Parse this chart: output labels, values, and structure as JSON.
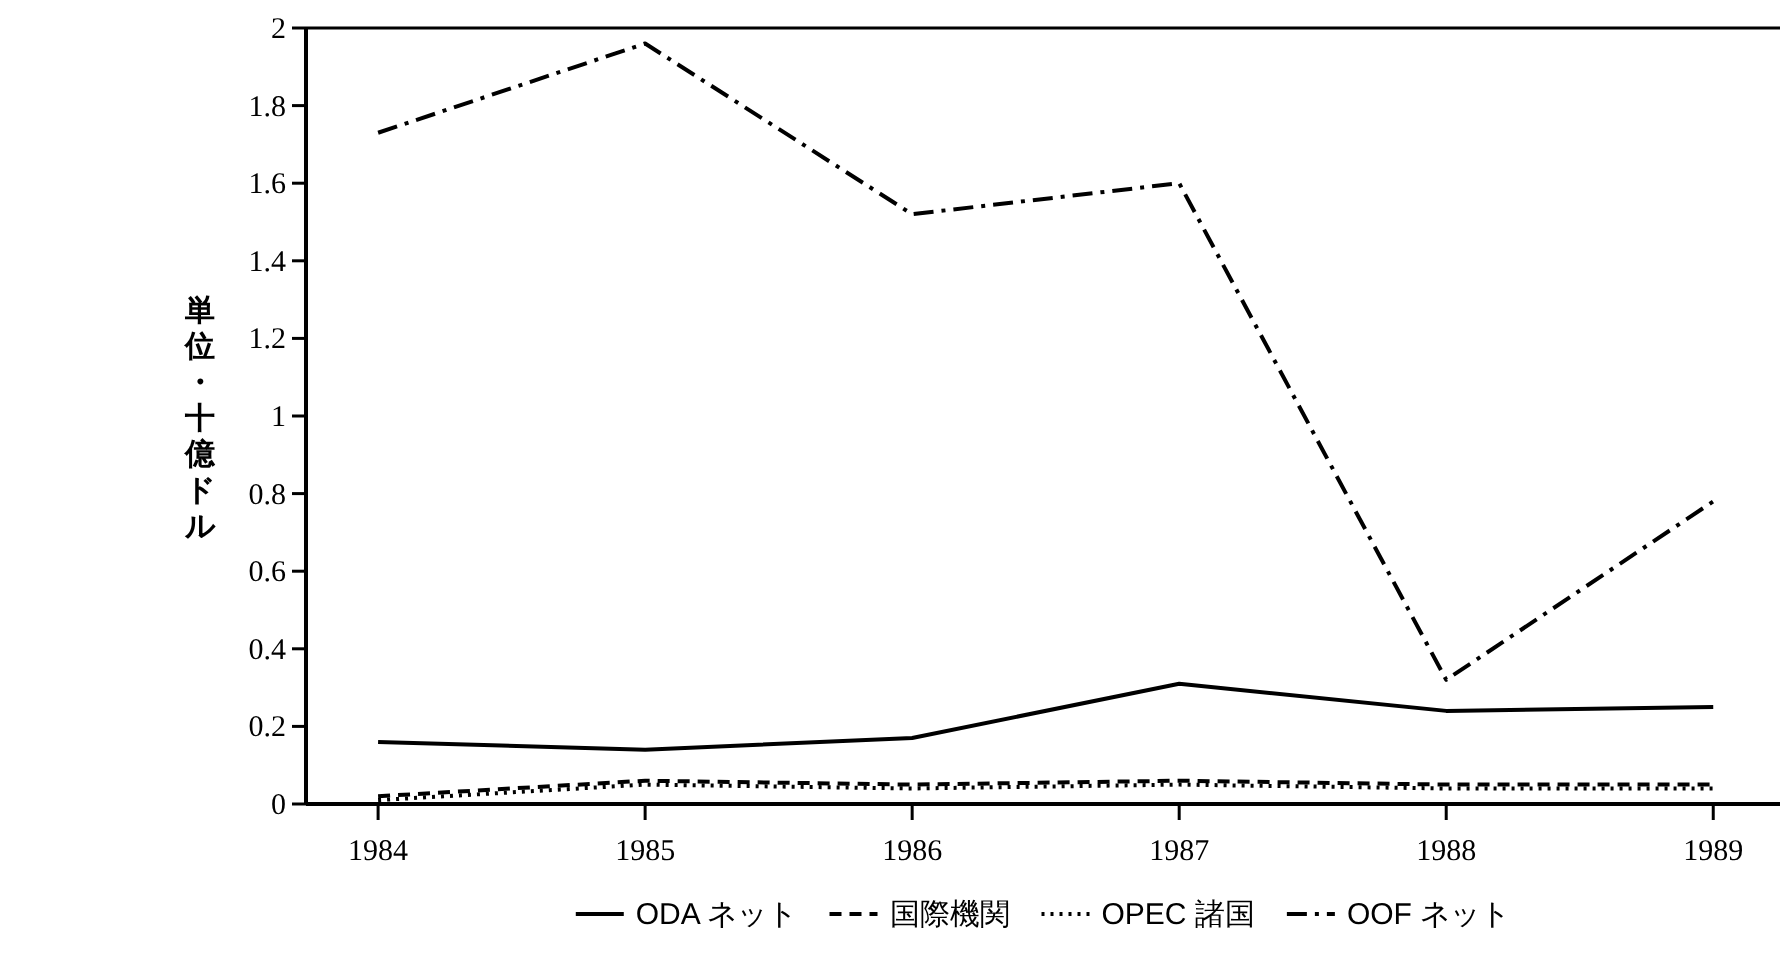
{
  "chart_data": {
    "type": "line",
    "ylabel": "単位・十億ドル",
    "x": [
      1984,
      1985,
      1986,
      1987,
      1988,
      1989
    ],
    "xlim": [
      1983.73,
      1989.25
    ],
    "xticks": [
      1984,
      1985,
      1986,
      1987,
      1988,
      1989
    ],
    "ylim": [
      0,
      2
    ],
    "yticks": [
      0,
      0.2,
      0.4,
      0.6,
      0.8,
      1,
      1.2,
      1.4,
      1.6,
      1.8,
      2
    ],
    "grid": false,
    "legend": "bottom",
    "series": [
      {
        "name": "ODA ネット",
        "color": "#000000",
        "line_style": "solid",
        "values": [
          0.16,
          0.14,
          0.17,
          0.31,
          0.24,
          0.25
        ]
      },
      {
        "name": "国際機関",
        "color": "#000000",
        "line_style": "dashed",
        "values": [
          0.02,
          0.06,
          0.05,
          0.06,
          0.05,
          0.05
        ]
      },
      {
        "name": "OPEC 諸国",
        "color": "#000000",
        "line_style": "dotted",
        "values": [
          0.01,
          0.05,
          0.04,
          0.05,
          0.04,
          0.04
        ]
      },
      {
        "name": "OOF ネット",
        "color": "#000000",
        "line_style": "dashdot",
        "values": [
          1.73,
          1.96,
          1.52,
          1.6,
          0.32,
          0.78
        ]
      }
    ]
  }
}
